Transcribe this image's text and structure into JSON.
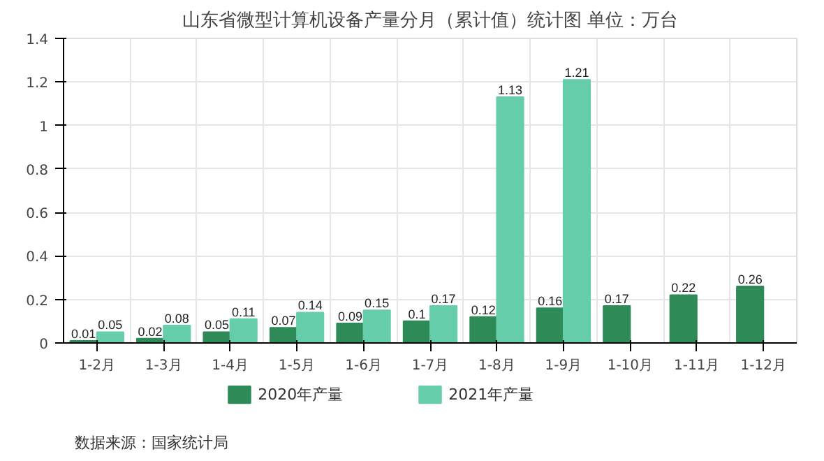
{
  "chart_data": {
    "type": "bar",
    "title": "山东省微型计算机设备产量分月（累计值）统计图 单位：万台",
    "categories": [
      "1-2月",
      "1-3月",
      "1-4月",
      "1-5月",
      "1-6月",
      "1-7月",
      "1-8月",
      "1-9月",
      "1-10月",
      "1-11月",
      "1-12月"
    ],
    "series": [
      {
        "name": "2020年产量",
        "color": "#2e8b57",
        "values": [
          0.01,
          0.02,
          0.05,
          0.07,
          0.09,
          0.1,
          0.12,
          0.16,
          0.17,
          0.22,
          0.26
        ]
      },
      {
        "name": "2021年产量",
        "color": "#66cdaa",
        "values": [
          0.05,
          0.08,
          0.11,
          0.14,
          0.15,
          0.17,
          1.13,
          1.21,
          null,
          null,
          null
        ]
      }
    ],
    "ylim": [
      0,
      1.4
    ],
    "yticks": [
      0,
      0.2,
      0.4,
      0.6,
      0.8,
      1,
      1.2,
      1.4
    ],
    "grid": true,
    "legend": "bottom",
    "data_labels": true,
    "annotations": [
      "数据来源：国家统计局"
    ]
  }
}
